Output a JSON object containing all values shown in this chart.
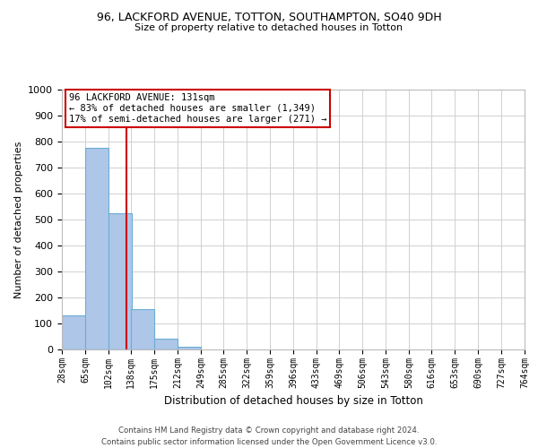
{
  "title": "96, LACKFORD AVENUE, TOTTON, SOUTHAMPTON, SO40 9DH",
  "subtitle": "Size of property relative to detached houses in Totton",
  "xlabel": "Distribution of detached houses by size in Totton",
  "ylabel": "Number of detached properties",
  "footer_line1": "Contains HM Land Registry data © Crown copyright and database right 2024.",
  "footer_line2": "Contains public sector information licensed under the Open Government Licence v3.0.",
  "bin_edges": [
    28,
    65,
    102,
    138,
    175,
    212,
    249,
    285,
    322,
    359,
    396,
    433,
    469,
    506,
    543,
    580,
    616,
    653,
    690,
    727,
    764
  ],
  "bar_values": [
    130,
    775,
    525,
    155,
    40,
    10,
    0,
    0,
    0,
    0,
    0,
    0,
    0,
    0,
    0,
    0,
    0,
    0,
    0,
    0
  ],
  "property_size": 131,
  "ylim": [
    0,
    1000
  ],
  "yticks": [
    0,
    100,
    200,
    300,
    400,
    500,
    600,
    700,
    800,
    900,
    1000
  ],
  "bar_color": "#aec6e8",
  "bar_edge_color": "#6aaed6",
  "vline_color": "#cc0000",
  "annotation_box_edge_color": "#cc0000",
  "annotation_title": "96 LACKFORD AVENUE: 131sqm",
  "annotation_line1": "← 83% of detached houses are smaller (1,349)",
  "annotation_line2": "17% of semi-detached houses are larger (271) →",
  "background_color": "#ffffff",
  "grid_color": "#d0d0d0",
  "tick_labels": [
    "28sqm",
    "65sqm",
    "102sqm",
    "138sqm",
    "175sqm",
    "212sqm",
    "249sqm",
    "285sqm",
    "322sqm",
    "359sqm",
    "396sqm",
    "433sqm",
    "469sqm",
    "506sqm",
    "543sqm",
    "580sqm",
    "616sqm",
    "653sqm",
    "690sqm",
    "727sqm",
    "764sqm"
  ]
}
